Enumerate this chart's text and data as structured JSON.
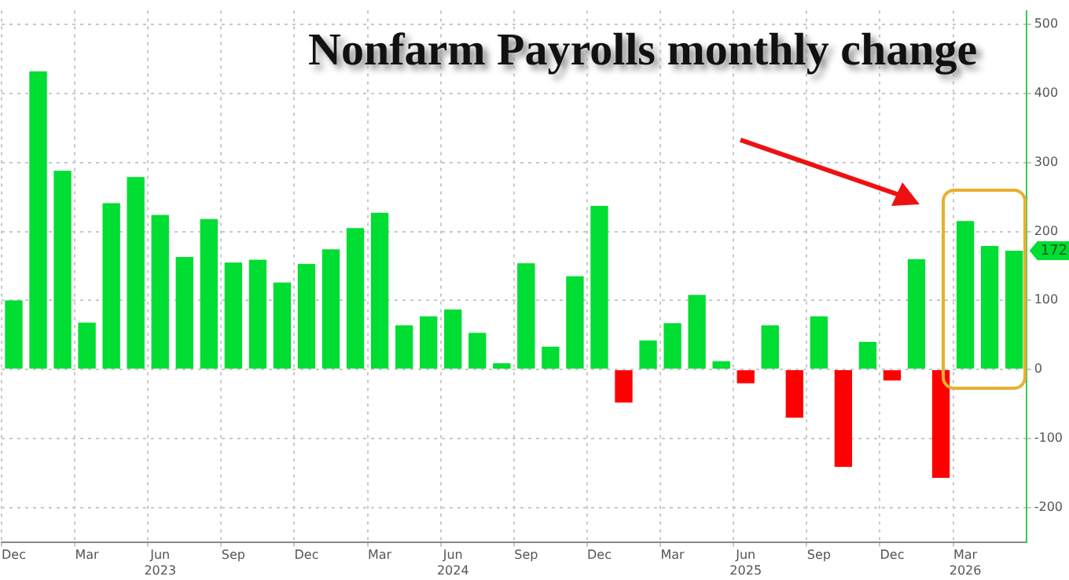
{
  "chart_data": {
    "type": "bar",
    "title": "Nonfarm Payrolls monthly change",
    "categories": [
      "Dec",
      null,
      null,
      "Mar",
      null,
      null,
      "Jun\n2023",
      null,
      null,
      "Sep",
      null,
      null,
      "Dec",
      null,
      null,
      "Mar",
      null,
      null,
      "Jun\n2024",
      null,
      null,
      "Sep",
      null,
      null,
      "Dec",
      null,
      null,
      "Mar",
      null,
      null,
      "Jun\n2025",
      null,
      null,
      "Sep",
      null,
      null,
      "Dec",
      null,
      null,
      "Mar\n2026",
      null,
      null
    ],
    "values": [
      100,
      432,
      288,
      68,
      241,
      279,
      224,
      163,
      218,
      155,
      159,
      126,
      153,
      174,
      205,
      227,
      64,
      77,
      87,
      53,
      9,
      154,
      33,
      135,
      237,
      -48,
      42,
      67,
      108,
      12,
      -20,
      64,
      -70,
      77,
      -141,
      40,
      -16,
      160,
      -157,
      215,
      179,
      172
    ],
    "colors": [
      "#00dd33",
      "#00dd33",
      "#00dd33",
      "#00dd33",
      "#00dd33",
      "#00dd33",
      "#00dd33",
      "#00dd33",
      "#00dd33",
      "#00dd33",
      "#00dd33",
      "#00dd33",
      "#00dd33",
      "#00dd33",
      "#00dd33",
      "#00dd33",
      "#00dd33",
      "#00dd33",
      "#00dd33",
      "#00dd33",
      "#00dd33",
      "#00dd33",
      "#00dd33",
      "#00dd33",
      "#00dd33",
      "#ff0000",
      "#00dd33",
      "#00dd33",
      "#00dd33",
      "#00dd33",
      "#ff0000",
      "#00dd33",
      "#ff0000",
      "#00dd33",
      "#ff0000",
      "#00dd33",
      "#ff0000",
      "#00dd33",
      "#ff0000",
      "#00dd33",
      "#00dd33",
      "#00dd33"
    ],
    "annotations": [
      "172"
    ],
    "ylim": [
      -250,
      520
    ],
    "yticks": [
      -200,
      -100,
      0,
      100,
      200,
      300,
      400,
      500
    ],
    "grid": true
  }
}
